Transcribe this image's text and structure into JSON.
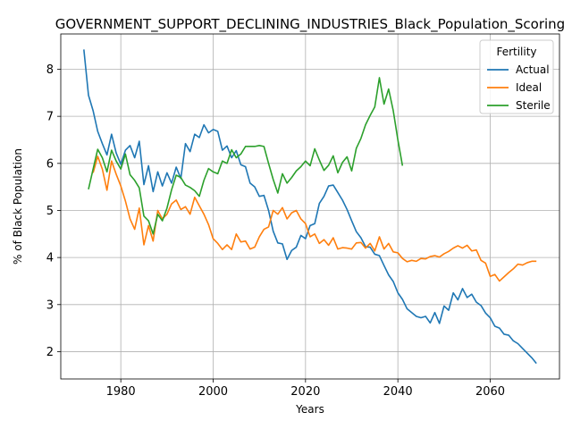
{
  "chart_data": {
    "type": "line",
    "title": "GOVERNMENT_SUPPORT_DECLINING_INDUSTRIES_Black_Population_Scoring",
    "xlabel": "Years",
    "ylabel": "% of Black Population",
    "xlim": [
      1967,
      2075
    ],
    "ylim": [
      1.42,
      8.75
    ],
    "xticks": [
      1980,
      2000,
      2020,
      2040,
      2060
    ],
    "yticks": [
      2,
      3,
      4,
      5,
      6,
      7,
      8
    ],
    "grid": true,
    "legend": {
      "title": "Fertility",
      "position": "top-right"
    },
    "series": [
      {
        "name": "Actual",
        "color": "#1f77b4",
        "x": [
          1972,
          1973,
          1974,
          1975,
          1976,
          1977,
          1978,
          1979,
          1980,
          1981,
          1982,
          1983,
          1984,
          1985,
          1986,
          1987,
          1988,
          1989,
          1990,
          1991,
          1992,
          1993,
          1994,
          1995,
          1996,
          1997,
          1998,
          1999,
          2000,
          2001,
          2002,
          2003,
          2004,
          2005,
          2006,
          2007,
          2008,
          2009,
          2010,
          2011,
          2012,
          2013,
          2014,
          2015,
          2016,
          2017,
          2018,
          2019,
          2020,
          2021,
          2022,
          2023,
          2024,
          2025,
          2026,
          2027,
          2028,
          2029,
          2030,
          2031,
          2032,
          2033,
          2034,
          2035,
          2036,
          2037,
          2038,
          2039,
          2040,
          2041,
          2042,
          2043,
          2044,
          2045,
          2046,
          2047,
          2048,
          2049,
          2050,
          2051,
          2052,
          2053,
          2054,
          2055,
          2056,
          2057,
          2058,
          2059,
          2060,
          2061,
          2062,
          2063,
          2064,
          2065,
          2066,
          2067,
          2068,
          2069,
          2070
        ],
        "values": [
          8.42,
          7.45,
          7.12,
          6.68,
          6.42,
          6.18,
          6.62,
          6.22,
          5.98,
          6.28,
          6.38,
          6.12,
          6.47,
          5.55,
          5.95,
          5.4,
          5.82,
          5.52,
          5.8,
          5.58,
          5.92,
          5.68,
          6.42,
          6.25,
          6.62,
          6.55,
          6.82,
          6.65,
          6.72,
          6.68,
          6.28,
          6.37,
          6.12,
          6.27,
          5.97,
          5.93,
          5.58,
          5.5,
          5.3,
          5.32,
          5.0,
          4.56,
          4.31,
          4.29,
          3.96,
          4.15,
          4.22,
          4.47,
          4.4,
          4.68,
          4.72,
          5.15,
          5.3,
          5.52,
          5.54,
          5.38,
          5.22,
          5.02,
          4.78,
          4.55,
          4.42,
          4.23,
          4.22,
          4.07,
          4.04,
          3.83,
          3.63,
          3.49,
          3.25,
          3.11,
          2.91,
          2.83,
          2.75,
          2.72,
          2.75,
          2.61,
          2.83,
          2.6,
          2.97,
          2.88,
          3.25,
          3.1,
          3.34,
          3.15,
          3.22,
          3.05,
          2.98,
          2.82,
          2.72,
          2.54,
          2.5,
          2.37,
          2.35,
          2.23,
          2.17,
          2.07,
          1.97,
          1.87,
          1.75
        ]
      },
      {
        "name": "Ideal",
        "color": "#ff7f0e",
        "x": [
          1974,
          1975,
          1976,
          1977,
          1978,
          1979,
          1980,
          1981,
          1982,
          1983,
          1984,
          1985,
          1986,
          1987,
          1988,
          1989,
          1990,
          1991,
          1992,
          1993,
          1994,
          1995,
          1996,
          1997,
          1998,
          1999,
          2000,
          2001,
          2002,
          2003,
          2004,
          2005,
          2006,
          2007,
          2008,
          2009,
          2010,
          2011,
          2012,
          2013,
          2014,
          2015,
          2016,
          2017,
          2018,
          2019,
          2020,
          2021,
          2022,
          2023,
          2024,
          2025,
          2026,
          2027,
          2028,
          2029,
          2030,
          2031,
          2032,
          2033,
          2034,
          2035,
          2036,
          2037,
          2038,
          2039,
          2040,
          2041,
          2042,
          2043,
          2044,
          2045,
          2046,
          2047,
          2048,
          2049,
          2050,
          2051,
          2052,
          2053,
          2054,
          2055,
          2056,
          2057,
          2058,
          2059,
          2060,
          2061,
          2062,
          2063,
          2064,
          2065,
          2066,
          2067,
          2068,
          2069,
          2070
        ],
        "values": [
          5.8,
          6.15,
          5.88,
          5.43,
          6.05,
          5.77,
          5.52,
          5.2,
          4.82,
          4.6,
          5.05,
          4.27,
          4.68,
          4.35,
          5.0,
          4.82,
          4.92,
          5.14,
          5.22,
          5.02,
          5.08,
          4.92,
          5.28,
          5.1,
          4.92,
          4.7,
          4.4,
          4.3,
          4.17,
          4.27,
          4.17,
          4.5,
          4.33,
          4.35,
          4.18,
          4.22,
          4.44,
          4.6,
          4.65,
          5.0,
          4.92,
          5.06,
          4.82,
          4.95,
          5.0,
          4.82,
          4.72,
          4.44,
          4.5,
          4.3,
          4.38,
          4.26,
          4.42,
          4.18,
          4.21,
          4.2,
          4.18,
          4.31,
          4.32,
          4.2,
          4.3,
          4.14,
          4.44,
          4.18,
          4.3,
          4.12,
          4.1,
          3.98,
          3.91,
          3.94,
          3.92,
          3.98,
          3.97,
          4.02,
          4.04,
          4.01,
          4.08,
          4.13,
          4.2,
          4.25,
          4.2,
          4.26,
          4.14,
          4.16,
          3.94,
          3.88,
          3.6,
          3.64,
          3.5,
          3.59,
          3.68,
          3.76,
          3.86,
          3.84,
          3.89,
          3.92,
          3.92
        ]
      },
      {
        "name": "Sterile",
        "color": "#2ca02c",
        "x": [
          1973,
          1974,
          1975,
          1976,
          1977,
          1978,
          1979,
          1980,
          1981,
          1982,
          1983,
          1984,
          1985,
          1986,
          1987,
          1988,
          1989,
          1990,
          1991,
          1992,
          1993,
          1994,
          1995,
          1996,
          1997,
          1998,
          1999,
          2000,
          2001,
          2002,
          2003,
          2004,
          2005,
          2006,
          2007,
          2008,
          2009,
          2010,
          2011,
          2012,
          2013,
          2014,
          2015,
          2016,
          2017,
          2018,
          2019,
          2020,
          2021,
          2022,
          2023,
          2024,
          2025,
          2026,
          2027,
          2028,
          2029,
          2030,
          2031,
          2032,
          2033,
          2034,
          2035,
          2036,
          2037,
          2038,
          2039,
          2040,
          2041
        ],
        "values": [
          5.45,
          5.88,
          6.3,
          6.12,
          5.82,
          6.28,
          6.05,
          5.88,
          6.2,
          5.76,
          5.64,
          5.48,
          4.88,
          4.78,
          4.5,
          4.92,
          4.78,
          5.05,
          5.44,
          5.75,
          5.7,
          5.54,
          5.49,
          5.42,
          5.3,
          5.64,
          5.89,
          5.82,
          5.78,
          6.05,
          6.0,
          6.29,
          6.12,
          6.2,
          6.36,
          6.36,
          6.36,
          6.38,
          6.36,
          6.0,
          5.66,
          5.37,
          5.78,
          5.58,
          5.7,
          5.84,
          5.93,
          6.05,
          5.95,
          6.31,
          6.07,
          5.85,
          5.96,
          6.16,
          5.8,
          6.02,
          6.14,
          5.84,
          6.32,
          6.53,
          6.82,
          7.02,
          7.2,
          7.82,
          7.26,
          7.58,
          7.12,
          6.5,
          5.95
        ]
      }
    ]
  }
}
